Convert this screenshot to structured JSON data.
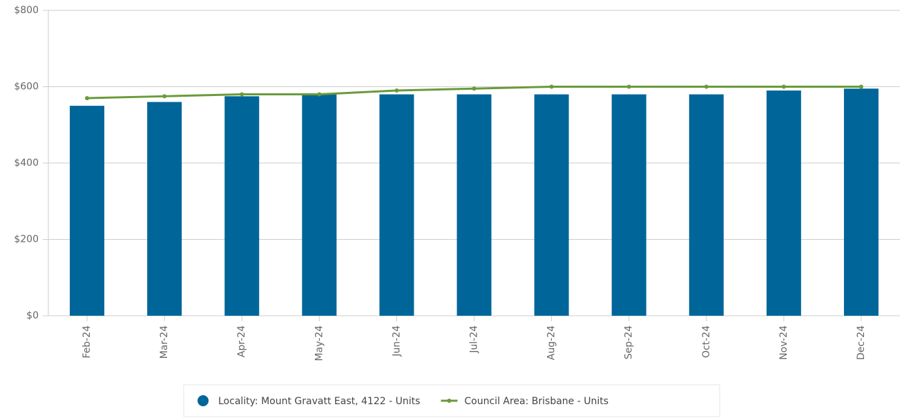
{
  "chart_data": {
    "type": "bar-line",
    "categories": [
      "Feb-24",
      "Mar-24",
      "Apr-24",
      "May-24",
      "Jun-24",
      "Jul-24",
      "Aug-24",
      "Sep-24",
      "Oct-24",
      "Nov-24",
      "Dec-24"
    ],
    "series": [
      {
        "name": "Locality: Mount Gravatt East, 4122 - Units",
        "type": "bar",
        "color": "#006699",
        "values": [
          550,
          560,
          575,
          580,
          580,
          580,
          580,
          580,
          580,
          590,
          595
        ]
      },
      {
        "name": "Council Area: Brisbane - Units",
        "type": "line",
        "color": "#6a9a3a",
        "values": [
          570,
          575,
          580,
          580,
          590,
          595,
          600,
          600,
          600,
          600,
          600
        ]
      }
    ],
    "ylim": [
      0,
      800
    ],
    "yticks": [
      {
        "value": 0,
        "label": "$0"
      },
      {
        "value": 200,
        "label": "$200"
      },
      {
        "value": 400,
        "label": "$400"
      },
      {
        "value": 600,
        "label": "$600"
      },
      {
        "value": 800,
        "label": "$800"
      }
    ],
    "grid": true
  }
}
